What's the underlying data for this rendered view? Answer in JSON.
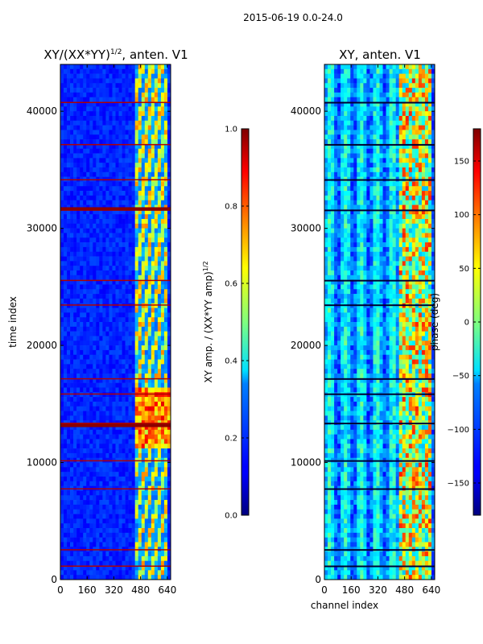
{
  "suptitle": "2015-06-19 0.0-24.0",
  "chart_data": [
    {
      "type": "heatmap",
      "title": "XY/(XX*YY)^1/2, anten. V1",
      "title_main": "XY/(XX*YY)",
      "title_exp": "1/2",
      "title_rest": ", anten. V1",
      "xlabel": "",
      "ylabel": "time index",
      "xlim": [
        0,
        660
      ],
      "ylim": [
        0,
        44000
      ],
      "xticks": [
        0,
        160,
        320,
        480,
        640
      ],
      "yticks": [
        0,
        10000,
        20000,
        30000,
        40000
      ],
      "colorbar": {
        "label": "XY amp. / (XX*YY amp)^1/2",
        "label_main": "XY amp. / (XX*YY amp)",
        "label_exp": "1/2",
        "range": [
          0.0,
          1.0
        ],
        "ticks": [
          "0.0",
          "0.2",
          "0.4",
          "0.6",
          "0.8",
          "1.0"
        ],
        "colormap": "jet"
      }
    },
    {
      "type": "heatmap",
      "title": "XY, anten. V1",
      "xlabel": "channel index",
      "ylabel": "",
      "xlim": [
        0,
        660
      ],
      "ylim": [
        0,
        44000
      ],
      "xticks": [
        0,
        160,
        320,
        480,
        640
      ],
      "yticks": [
        0,
        10000,
        20000,
        30000,
        40000
      ],
      "colorbar": {
        "label": "phase (deg)",
        "range": [
          -180,
          180
        ],
        "ticks": [
          "-150",
          "-100",
          "-50",
          "0",
          "50",
          "100",
          "150"
        ],
        "colormap": "jet"
      }
    }
  ]
}
